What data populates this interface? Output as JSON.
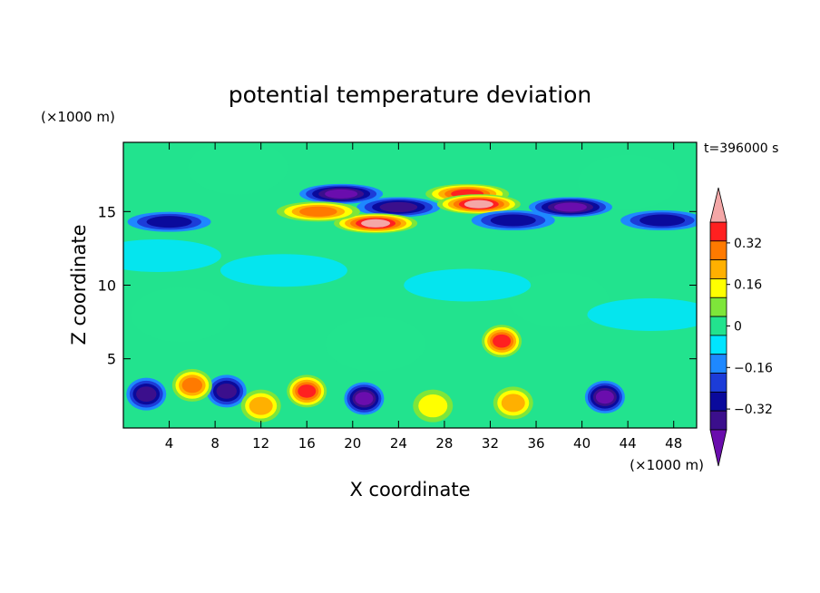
{
  "chart_data": {
    "type": "heatmap",
    "title": "potential temperature deviation",
    "xlabel": "X coordinate",
    "ylabel": "Z coordinate",
    "x_unit": "(×1000 m)",
    "y_unit": "(×1000 m)",
    "time_label": "t=396000 s",
    "xlim": [
      0,
      50
    ],
    "ylim": [
      0.3,
      19.7
    ],
    "x_ticks": [
      4,
      8,
      12,
      16,
      20,
      24,
      28,
      32,
      36,
      40,
      44,
      48
    ],
    "y_ticks": [
      5,
      10,
      15
    ],
    "colorbar": {
      "levels": [
        -0.48,
        -0.4,
        -0.32,
        -0.24,
        -0.16,
        -0.08,
        0,
        0.08,
        0.16,
        0.24,
        0.32,
        0.4,
        0.48
      ],
      "tick_labels": [
        "0.32",
        "0.16",
        "0",
        "−0.16",
        "−0.32"
      ],
      "tick_values": [
        0.32,
        0.16,
        0,
        -0.16,
        -0.32
      ],
      "colors": [
        "#6a0dad",
        "#3b0f8c",
        "#0a0a9c",
        "#1c3cd8",
        "#1e88ff",
        "#00e5ff",
        "#22e38e",
        "#7ee63a",
        "#ffff00",
        "#ffb000",
        "#ff7a00",
        "#ff2020",
        "#f4a7a7"
      ]
    },
    "features": [
      {
        "x": 19,
        "z": 16.2,
        "value": -0.42
      },
      {
        "x": 24,
        "z": 15.3,
        "value": -0.3
      },
      {
        "x": 22,
        "z": 14.2,
        "value": 0.44
      },
      {
        "x": 17,
        "z": 15.0,
        "value": 0.3
      },
      {
        "x": 30,
        "z": 16.2,
        "value": 0.36
      },
      {
        "x": 31,
        "z": 15.5,
        "value": 0.46
      },
      {
        "x": 39,
        "z": 15.3,
        "value": -0.4
      },
      {
        "x": 4,
        "z": 14.3,
        "value": -0.26
      },
      {
        "x": 34,
        "z": 14.4,
        "value": -0.22
      },
      {
        "x": 47,
        "z": 14.4,
        "value": -0.22
      },
      {
        "x": 21,
        "z": 2.3,
        "value": -0.4
      },
      {
        "x": 42,
        "z": 2.4,
        "value": -0.38
      },
      {
        "x": 9,
        "z": 2.8,
        "value": -0.3
      },
      {
        "x": 2,
        "z": 2.6,
        "value": -0.32
      },
      {
        "x": 16,
        "z": 2.8,
        "value": 0.36
      },
      {
        "x": 12,
        "z": 1.8,
        "value": 0.22
      },
      {
        "x": 27,
        "z": 1.8,
        "value": 0.18
      },
      {
        "x": 34,
        "z": 2.0,
        "value": 0.26
      },
      {
        "x": 6,
        "z": 3.2,
        "value": 0.3
      },
      {
        "x": 33,
        "z": 6.2,
        "value": 0.38
      }
    ]
  }
}
